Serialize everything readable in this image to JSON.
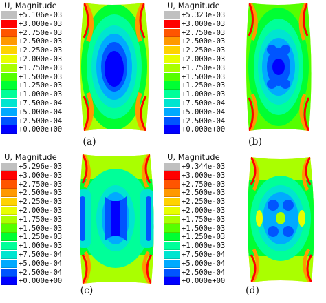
{
  "legend_title": "U, Magnitude",
  "colors": [
    "#c0c0c0",
    "#ff0000",
    "#ff5500",
    "#ff9900",
    "#ffd200",
    "#e8ff00",
    "#aaff00",
    "#55ff00",
    "#00ff33",
    "#00ff99",
    "#00e5d0",
    "#00aaff",
    "#0055ff",
    "#0000ff"
  ],
  "panels": [
    {
      "caption": "(a)",
      "legend_values": [
        "+5.106e-03",
        "+3.000e-03",
        "+2.750e-03",
        "+2.500e-03",
        "+2.250e-03",
        "+2.000e-03",
        "+1.750e-03",
        "+1.500e-03",
        "+1.250e-03",
        "+1.000e-03",
        "+7.500e-04",
        "+5.000e-04",
        "+2.500e-04",
        "+0.000e+00"
      ]
    },
    {
      "caption": "(b)",
      "legend_values": [
        "+5.323e-03",
        "+3.000e-03",
        "+2.750e-03",
        "+2.500e-03",
        "+2.250e-03",
        "+2.000e-03",
        "+1.750e-03",
        "+1.500e-03",
        "+1.250e-03",
        "+1.000e-03",
        "+7.500e-04",
        "+5.000e-04",
        "+2.500e-04",
        "+0.000e+00"
      ]
    },
    {
      "caption": "(c)",
      "legend_values": [
        "+5.296e-03",
        "+3.000e-03",
        "+2.750e-03",
        "+2.500e-03",
        "+2.250e-03",
        "+2.000e-03",
        "+1.750e-03",
        "+1.500e-03",
        "+1.250e-03",
        "+1.000e-03",
        "+7.500e-04",
        "+5.000e-04",
        "+2.500e-04",
        "+0.000e+00"
      ]
    },
    {
      "caption": "(d)",
      "legend_values": [
        "+9.344e-03",
        "+3.000e-03",
        "+2.750e-03",
        "+2.500e-03",
        "+2.250e-03",
        "+2.000e-03",
        "+1.750e-03",
        "+1.500e-03",
        "+1.250e-03",
        "+1.000e-03",
        "+7.500e-04",
        "+5.000e-04",
        "+2.500e-04",
        "+0.000e+00"
      ]
    }
  ]
}
